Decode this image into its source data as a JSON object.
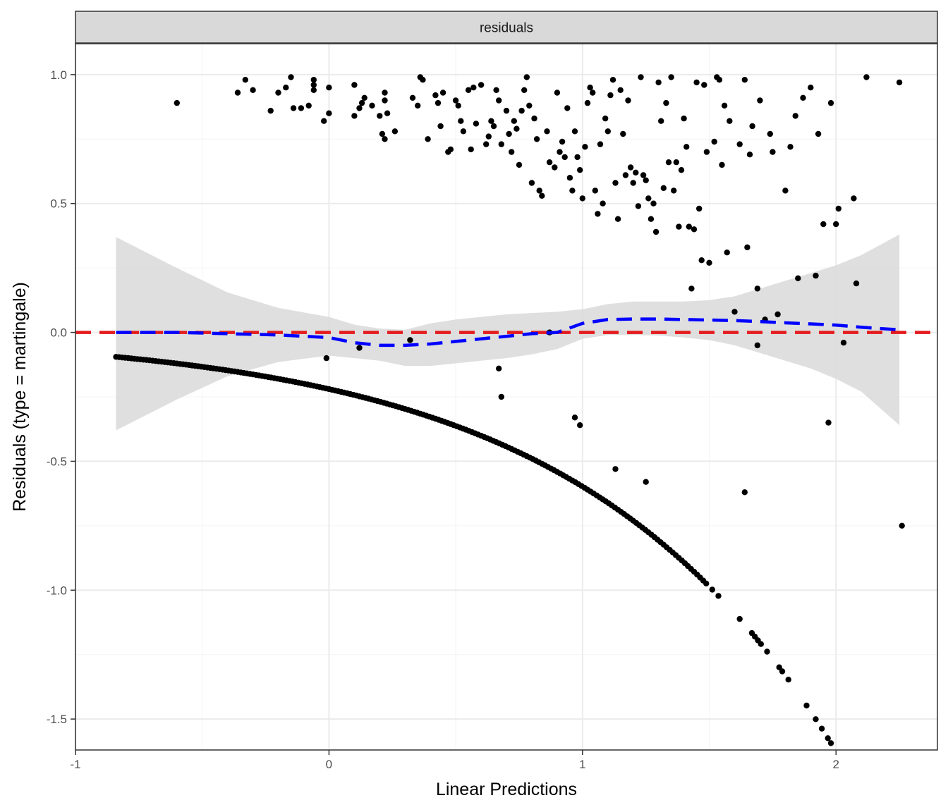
{
  "chart_data": {
    "type": "scatter",
    "facet_label": "residuals",
    "xlabel": "Linear Predictions",
    "ylabel": "Residuals (type = martingale)",
    "xlim": [
      -1.0,
      2.4
    ],
    "ylim": [
      -1.62,
      1.12
    ],
    "x_ticks": [
      -1,
      0,
      1,
      2
    ],
    "x_tick_labels": [
      "-1",
      "0",
      "1",
      "2"
    ],
    "y_ticks": [
      1.0,
      0.5,
      0.0,
      -0.5,
      -1.0,
      -1.5
    ],
    "y_tick_labels": [
      "1.0",
      "0.5",
      "0.0",
      "-0.5",
      "-1.0",
      "-1.5"
    ],
    "grid": true,
    "colors": {
      "points": "#000000",
      "smooth_line": "#0000ff",
      "reference_line": "#e41a1c",
      "confidence_band": "#d9d9d9",
      "strip_background": "#d9d9d9",
      "grid_major": "#ebebeb",
      "grid_minor": "#f4f4f4"
    },
    "reference_line": {
      "y": 0,
      "style": "dashed"
    },
    "smooth": {
      "style": "dashed",
      "x": [
        -0.84,
        -0.6,
        -0.4,
        -0.2,
        0.0,
        0.1,
        0.2,
        0.3,
        0.4,
        0.5,
        0.6,
        0.7,
        0.8,
        0.9,
        1.0,
        1.1,
        1.2,
        1.3,
        1.4,
        1.5,
        1.6,
        1.7,
        1.8,
        1.9,
        2.0,
        2.1,
        2.25
      ],
      "y": [
        0.0,
        0.0,
        -0.005,
        -0.01,
        -0.02,
        -0.04,
        -0.05,
        -0.05,
        -0.045,
        -0.035,
        -0.025,
        -0.015,
        -0.005,
        0.0,
        0.035,
        0.05,
        0.052,
        0.052,
        0.05,
        0.048,
        0.046,
        0.042,
        0.037,
        0.033,
        0.028,
        0.02,
        0.01
      ],
      "lower": [
        -0.38,
        -0.26,
        -0.17,
        -0.115,
        -0.09,
        -0.1,
        -0.11,
        -0.13,
        -0.13,
        -0.12,
        -0.11,
        -0.1,
        -0.085,
        -0.065,
        -0.025,
        -0.01,
        -0.01,
        -0.012,
        -0.02,
        -0.03,
        -0.05,
        -0.08,
        -0.11,
        -0.14,
        -0.18,
        -0.23,
        -0.36
      ],
      "upper": [
        0.37,
        0.25,
        0.155,
        0.095,
        0.06,
        0.03,
        0.015,
        0.01,
        0.035,
        0.05,
        0.06,
        0.07,
        0.075,
        0.08,
        0.09,
        0.11,
        0.12,
        0.12,
        0.12,
        0.125,
        0.14,
        0.17,
        0.2,
        0.23,
        0.26,
        0.3,
        0.38
      ]
    },
    "points": [
      [
        -0.6,
        0.89
      ],
      [
        -0.36,
        0.93
      ],
      [
        -0.33,
        0.98
      ],
      [
        -0.3,
        0.94
      ],
      [
        -0.23,
        0.86
      ],
      [
        -0.2,
        0.93
      ],
      [
        -0.17,
        0.95
      ],
      [
        -0.15,
        0.99
      ],
      [
        -0.14,
        0.87
      ],
      [
        -0.11,
        0.87
      ],
      [
        -0.08,
        0.88
      ],
      [
        -0.06,
        0.98
      ],
      [
        -0.06,
        0.96
      ],
      [
        -0.06,
        0.94
      ],
      [
        -0.02,
        0.82
      ],
      [
        0.0,
        0.85
      ],
      [
        0.0,
        0.95
      ],
      [
        0.1,
        0.96
      ],
      [
        0.1,
        0.84
      ],
      [
        0.12,
        0.87
      ],
      [
        0.13,
        0.89
      ],
      [
        0.14,
        0.91
      ],
      [
        0.17,
        0.88
      ],
      [
        0.2,
        0.84
      ],
      [
        0.21,
        0.77
      ],
      [
        0.22,
        0.9
      ],
      [
        0.22,
        0.93
      ],
      [
        0.22,
        0.75
      ],
      [
        0.23,
        0.85
      ],
      [
        0.26,
        0.78
      ],
      [
        0.33,
        0.91
      ],
      [
        0.35,
        0.88
      ],
      [
        0.36,
        0.99
      ],
      [
        0.37,
        0.98
      ],
      [
        0.39,
        0.75
      ],
      [
        0.42,
        0.92
      ],
      [
        0.43,
        0.89
      ],
      [
        0.44,
        0.8
      ],
      [
        0.45,
        0.93
      ],
      [
        0.47,
        0.7
      ],
      [
        0.48,
        0.71
      ],
      [
        0.5,
        0.9
      ],
      [
        0.51,
        0.88
      ],
      [
        0.52,
        0.82
      ],
      [
        0.53,
        0.78
      ],
      [
        0.55,
        0.94
      ],
      [
        0.56,
        0.71
      ],
      [
        0.57,
        0.95
      ],
      [
        0.58,
        0.81
      ],
      [
        0.6,
        0.96
      ],
      [
        0.62,
        0.73
      ],
      [
        0.63,
        0.76
      ],
      [
        0.64,
        0.82
      ],
      [
        0.65,
        0.8
      ],
      [
        0.66,
        0.94
      ],
      [
        0.67,
        0.9
      ],
      [
        0.68,
        0.73
      ],
      [
        0.7,
        0.86
      ],
      [
        0.71,
        0.77
      ],
      [
        0.72,
        0.7
      ],
      [
        0.73,
        0.82
      ],
      [
        0.74,
        0.79
      ],
      [
        0.75,
        0.65
      ],
      [
        0.76,
        0.86
      ],
      [
        0.77,
        0.94
      ],
      [
        0.78,
        0.99
      ],
      [
        0.79,
        0.88
      ],
      [
        0.8,
        0.58
      ],
      [
        0.81,
        0.83
      ],
      [
        0.82,
        0.75
      ],
      [
        0.83,
        0.55
      ],
      [
        0.84,
        0.53
      ],
      [
        0.86,
        0.78
      ],
      [
        0.87,
        0.66
      ],
      [
        0.89,
        0.64
      ],
      [
        0.9,
        0.93
      ],
      [
        0.91,
        0.7
      ],
      [
        0.92,
        0.74
      ],
      [
        0.93,
        0.68
      ],
      [
        0.94,
        0.87
      ],
      [
        0.95,
        0.6
      ],
      [
        0.96,
        0.55
      ],
      [
        0.97,
        0.78
      ],
      [
        0.98,
        0.68
      ],
      [
        0.99,
        0.63
      ],
      [
        1.0,
        0.52
      ],
      [
        1.01,
        0.72
      ],
      [
        1.02,
        0.89
      ],
      [
        1.03,
        0.95
      ],
      [
        1.04,
        0.93
      ],
      [
        1.05,
        0.55
      ],
      [
        1.06,
        0.46
      ],
      [
        1.07,
        0.73
      ],
      [
        1.08,
        0.5
      ],
      [
        1.09,
        0.83
      ],
      [
        1.1,
        0.78
      ],
      [
        1.11,
        0.92
      ],
      [
        1.12,
        0.98
      ],
      [
        1.13,
        0.58
      ],
      [
        1.14,
        0.44
      ],
      [
        1.15,
        0.94
      ],
      [
        1.16,
        0.77
      ],
      [
        1.17,
        0.61
      ],
      [
        1.18,
        0.9
      ],
      [
        1.19,
        0.64
      ],
      [
        1.2,
        0.58
      ],
      [
        1.21,
        0.62
      ],
      [
        1.22,
        0.49
      ],
      [
        1.23,
        0.99
      ],
      [
        1.24,
        0.61
      ],
      [
        1.25,
        0.59
      ],
      [
        1.26,
        0.52
      ],
      [
        1.27,
        0.44
      ],
      [
        1.28,
        0.5
      ],
      [
        1.29,
        0.39
      ],
      [
        1.3,
        0.97
      ],
      [
        1.31,
        0.82
      ],
      [
        1.32,
        0.56
      ],
      [
        1.33,
        0.89
      ],
      [
        1.34,
        0.66
      ],
      [
        1.35,
        0.99
      ],
      [
        1.36,
        0.55
      ],
      [
        1.37,
        0.66
      ],
      [
        1.38,
        0.41
      ],
      [
        1.39,
        0.63
      ],
      [
        1.4,
        0.83
      ],
      [
        1.41,
        0.72
      ],
      [
        1.42,
        0.41
      ],
      [
        1.43,
        0.17
      ],
      [
        1.44,
        0.4
      ],
      [
        1.45,
        0.97
      ],
      [
        1.46,
        0.48
      ],
      [
        1.47,
        0.28
      ],
      [
        1.48,
        0.96
      ],
      [
        1.49,
        0.7
      ],
      [
        1.5,
        0.27
      ],
      [
        1.52,
        0.74
      ],
      [
        1.53,
        0.99
      ],
      [
        1.54,
        0.98
      ],
      [
        1.55,
        0.65
      ],
      [
        1.56,
        0.88
      ],
      [
        1.57,
        0.31
      ],
      [
        1.58,
        0.82
      ],
      [
        1.6,
        0.08
      ],
      [
        1.62,
        0.73
      ],
      [
        1.64,
        0.98
      ],
      [
        1.65,
        0.33
      ],
      [
        1.66,
        0.69
      ],
      [
        1.67,
        0.8
      ],
      [
        1.69,
        0.17
      ],
      [
        1.7,
        0.9
      ],
      [
        1.72,
        0.05
      ],
      [
        1.74,
        0.77
      ],
      [
        1.75,
        0.7
      ],
      [
        1.77,
        0.07
      ],
      [
        1.8,
        0.55
      ],
      [
        1.82,
        0.72
      ],
      [
        1.84,
        0.84
      ],
      [
        1.85,
        0.21
      ],
      [
        1.87,
        0.91
      ],
      [
        1.9,
        0.95
      ],
      [
        1.92,
        0.22
      ],
      [
        1.93,
        0.77
      ],
      [
        1.95,
        0.42
      ],
      [
        1.97,
        -0.35
      ],
      [
        1.98,
        0.89
      ],
      [
        2.0,
        0.42
      ],
      [
        2.01,
        0.48
      ],
      [
        2.03,
        -0.04
      ],
      [
        2.07,
        0.52
      ],
      [
        2.08,
        0.19
      ],
      [
        2.12,
        0.99
      ],
      [
        2.25,
        0.97
      ],
      [
        2.26,
        -0.75
      ],
      [
        1.64,
        -0.62
      ],
      [
        1.69,
        -0.05
      ],
      [
        1.25,
        -0.58
      ],
      [
        1.13,
        -0.53
      ],
      [
        0.97,
        -0.33
      ],
      [
        0.99,
        -0.36
      ],
      [
        0.68,
        -0.25
      ],
      [
        0.67,
        -0.14
      ],
      [
        0.87,
        0.0
      ],
      [
        0.32,
        -0.03
      ],
      [
        0.12,
        -0.06
      ],
      [
        -0.01,
        -0.1
      ]
    ],
    "curve_points_rule": "additional points lie on the martingale-residual curve y = -exp(x) * 0.22 for x from -0.84 to 2.0 (dense band)"
  }
}
